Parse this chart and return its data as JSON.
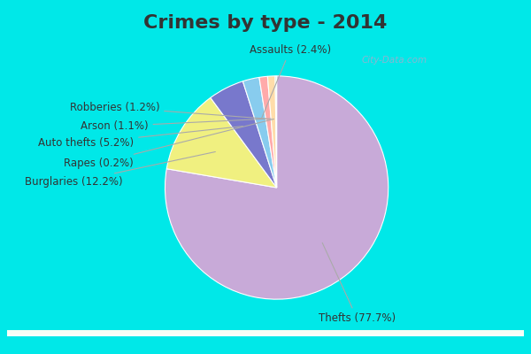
{
  "title": "Crimes by type - 2014",
  "labels": [
    "Thefts",
    "Burglaries",
    "Auto thefts",
    "Assaults",
    "Robberies",
    "Arson",
    "Rapes"
  ],
  "pct_labels": [
    "Thefts (77.7%)",
    "Burglaries (12.2%)",
    "Auto thefts (5.2%)",
    "Assaults (2.4%)",
    "Robberies (1.2%)",
    "Arson (1.1%)",
    "Rapes (0.2%)"
  ],
  "values": [
    77.7,
    12.2,
    5.2,
    2.4,
    1.2,
    1.1,
    0.2
  ],
  "colors": [
    "#c8aad8",
    "#f0f080",
    "#7878cc",
    "#88ccee",
    "#ffaaaa",
    "#ffddaa",
    "#cceecc"
  ],
  "bg_cyan": "#00e8e8",
  "bg_white": "#f0faf0",
  "title_fontsize": 16,
  "label_fontsize": 8.5,
  "startangle": 90,
  "title_color": "#333333"
}
